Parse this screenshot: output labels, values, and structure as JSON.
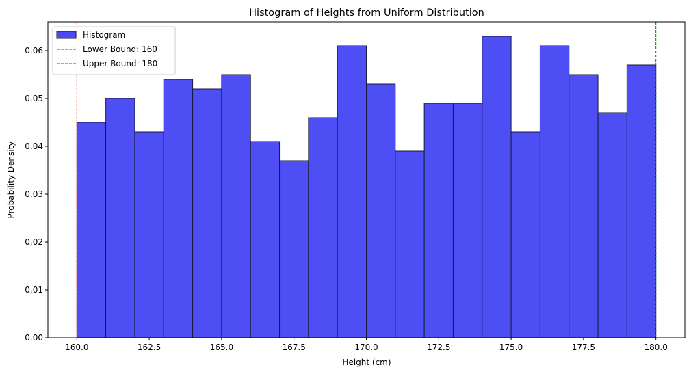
{
  "chart_data": {
    "type": "bar",
    "title": "Histogram of Heights from Uniform Distribution",
    "xlabel": "Height (cm)",
    "ylabel": "Probability Density",
    "bin_edges": [
      160,
      161,
      162,
      163,
      164,
      165,
      166,
      167,
      168,
      169,
      170,
      171,
      172,
      173,
      174,
      175,
      176,
      177,
      178,
      179,
      180
    ],
    "values": [
      0.045,
      0.05,
      0.043,
      0.054,
      0.052,
      0.055,
      0.041,
      0.037,
      0.046,
      0.061,
      0.053,
      0.039,
      0.049,
      0.049,
      0.063,
      0.043,
      0.061,
      0.055,
      0.047,
      0.057
    ],
    "xlim": [
      159,
      181
    ],
    "ylim": [
      0,
      0.066
    ],
    "xticks": [
      160.0,
      162.5,
      165.0,
      167.5,
      170.0,
      172.5,
      175.0,
      177.5,
      180.0
    ],
    "xtick_labels": [
      "160.0",
      "162.5",
      "165.0",
      "167.5",
      "170.0",
      "172.5",
      "175.0",
      "177.5",
      "180.0"
    ],
    "yticks": [
      0.0,
      0.01,
      0.02,
      0.03,
      0.04,
      0.05,
      0.06
    ],
    "ytick_labels": [
      "0.00",
      "0.01",
      "0.02",
      "0.03",
      "0.04",
      "0.05",
      "0.06"
    ],
    "bar_color": "#4a4af5",
    "bar_edge_color": "#1a1a3a",
    "grid": false,
    "legend_position": "top-left",
    "vlines": [
      {
        "x": 160,
        "label": "Lower Bound: 160",
        "color": "#ff0000"
      },
      {
        "x": 180,
        "label": "Upper Bound: 180",
        "color": "#008000"
      }
    ],
    "legend": [
      {
        "label": "Histogram",
        "kind": "patch",
        "color": "#4a4af5"
      },
      {
        "label": "Lower Bound: 160",
        "kind": "dashed-line",
        "color": "#ff0000"
      },
      {
        "label": "Upper Bound: 180",
        "kind": "dashed-line",
        "color": "#008000"
      }
    ]
  }
}
